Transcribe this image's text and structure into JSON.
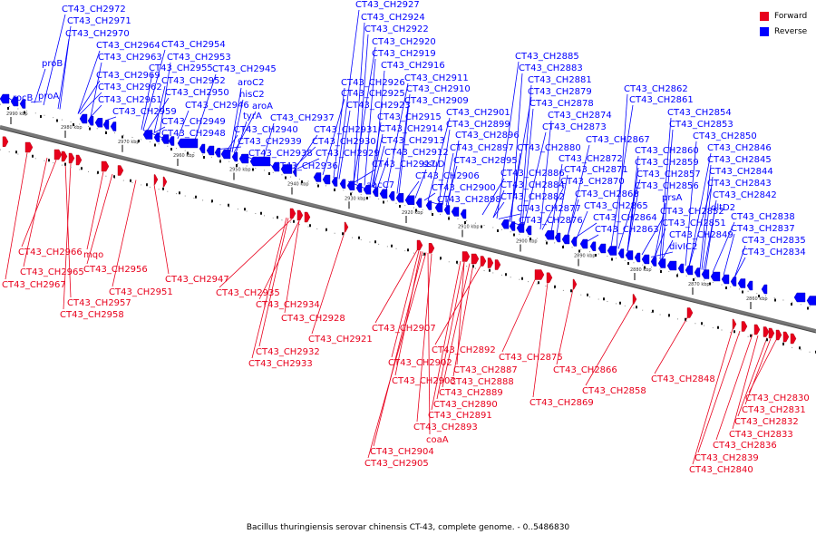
{
  "legend": {
    "forward_label": "Forward",
    "reverse_label": "Reverse",
    "forward_color": "#e8001c",
    "reverse_color": "#0000ff"
  },
  "caption": "Bacillus thuringiensis serovar chinensis CT-43, complete genome. - 0..5486830",
  "ticks": [
    "2990 kbp",
    "2980 kbp",
    "2970 kbp",
    "2960 kbp",
    "2950 kbp",
    "2940 kbp",
    "2930 kbp",
    "2920 kbp",
    "2910 kbp",
    "2900 kbp",
    "2890 kbp",
    "2880 kbp",
    "2870 kbp",
    "2860 kbp"
  ],
  "reverse_labels": [
    "CT43_CH2972",
    "CT43_CH2971",
    "CT43_CH2970",
    "CT43_CH2964",
    "CT43_CH2963",
    "proB",
    "CT43_CH2969",
    "rocB",
    "proA",
    "CT43_CH2962",
    "CT43_CH2961",
    "CT43_CH2959",
    "CT43_CH2954",
    "CT43_CH2953",
    "CT43_CH2955",
    "CT43_CH2945",
    "CT43_CH2952",
    "aroC2",
    "CT43_CH2950",
    "hisC2",
    "CT43_CH2946",
    "aroA",
    "CT43_CH2949",
    "tyrA",
    "CT43_CH2948",
    "CT43_CH2937",
    "CT43_CH2940",
    "CT43_CH2939",
    "CT43_CH2938",
    "CT43_CH2936",
    "CT43_CH2927",
    "CT43_CH2924",
    "CT43_CH2922",
    "CT43_CH2920",
    "CT43_CH2919",
    "CT43_CH2916",
    "CT43_CH2911",
    "CT43_CH2926",
    "CT43_CH2910",
    "CT43_CH2925",
    "CT43_CH2909",
    "CT43_CH2923",
    "CT43_CH2901",
    "CT43_CH2915",
    "CT43_CH2899",
    "CT43_CH2931",
    "CT43_CH2914",
    "CT43_CH2896",
    "CT43_CH2930",
    "CT43_CH2913",
    "CT43_CH2897",
    "CT43_CH2929",
    "CT43_CH2912",
    "CT43_CH2895",
    "CT43_CH2917",
    "ssuD",
    "CT43_CH2906",
    "aacC7",
    "CT43_CH2900",
    "CT43_CH2898",
    "CT43_CH2885",
    "CT43_CH2883",
    "CT43_CH2881",
    "CT43_CH2879",
    "CT43_CH2878",
    "CT43_CH2874",
    "CT43_CH2873",
    "CT43_CH2880",
    "CT43_CH2872",
    "CT43_CH2886",
    "CT43_CH2871",
    "CT43_CH2884",
    "CT43_CH2870",
    "CT43_CH2882",
    "CT43_CH2868",
    "CT43_CH2877",
    "CT43_CH2865",
    "CT43_CH2876",
    "CT43_CH2864",
    "CT43_CH2863",
    "CT43_CH2862",
    "CT43_CH2861",
    "CT43_CH2854",
    "CT43_CH2853",
    "CT43_CH2867",
    "CT43_CH2850",
    "CT43_CH2860",
    "CT43_CH2846",
    "CT43_CH2859",
    "CT43_CH2845",
    "CT43_CH2857",
    "CT43_CH2844",
    "CT43_CH2856",
    "CT43_CH2843",
    "prsA",
    "CT43_CH2842",
    "CT43_CH2852",
    "dltD2",
    "CT43_CH2851",
    "CT43_CH2838",
    "CT43_CH2849",
    "CT43_CH2837",
    "divIC2",
    "CT43_CH2835",
    "CT43_CH2834"
  ],
  "forward_labels": [
    "CT43_CH2966",
    "mqo",
    "CT43_CH2965",
    "CT43_CH2956",
    "CT43_CH2967",
    "CT43_CH2947",
    "CT43_CH2951",
    "CT43_CH2957",
    "CT43_CH2958",
    "CT43_CH2935",
    "CT43_CH2934",
    "CT43_CH2928",
    "CT43_CH2921",
    "CT43_CH2932",
    "CT43_CH2933",
    "CT43_CH2907",
    "CT43_CH2892",
    "CT43_CH2902",
    "CT43_CH2887",
    "CT43_CH2903",
    "CT43_CH2888",
    "CT43_CH2889",
    "CT43_CH2890",
    "CT43_CH2891",
    "CT43_CH2893",
    "coaA",
    "CT43_CH2904",
    "CT43_CH2905",
    "CT43_CH2875",
    "CT43_CH2866",
    "CT43_CH2869",
    "CT43_CH2858",
    "CT43_CH2848",
    "CT43_CH2830",
    "CT43_CH2831",
    "CT43_CH2832",
    "CT43_CH2833",
    "CT43_CH2836",
    "CT43_CH2839",
    "CT43_CH2840"
  ]
}
